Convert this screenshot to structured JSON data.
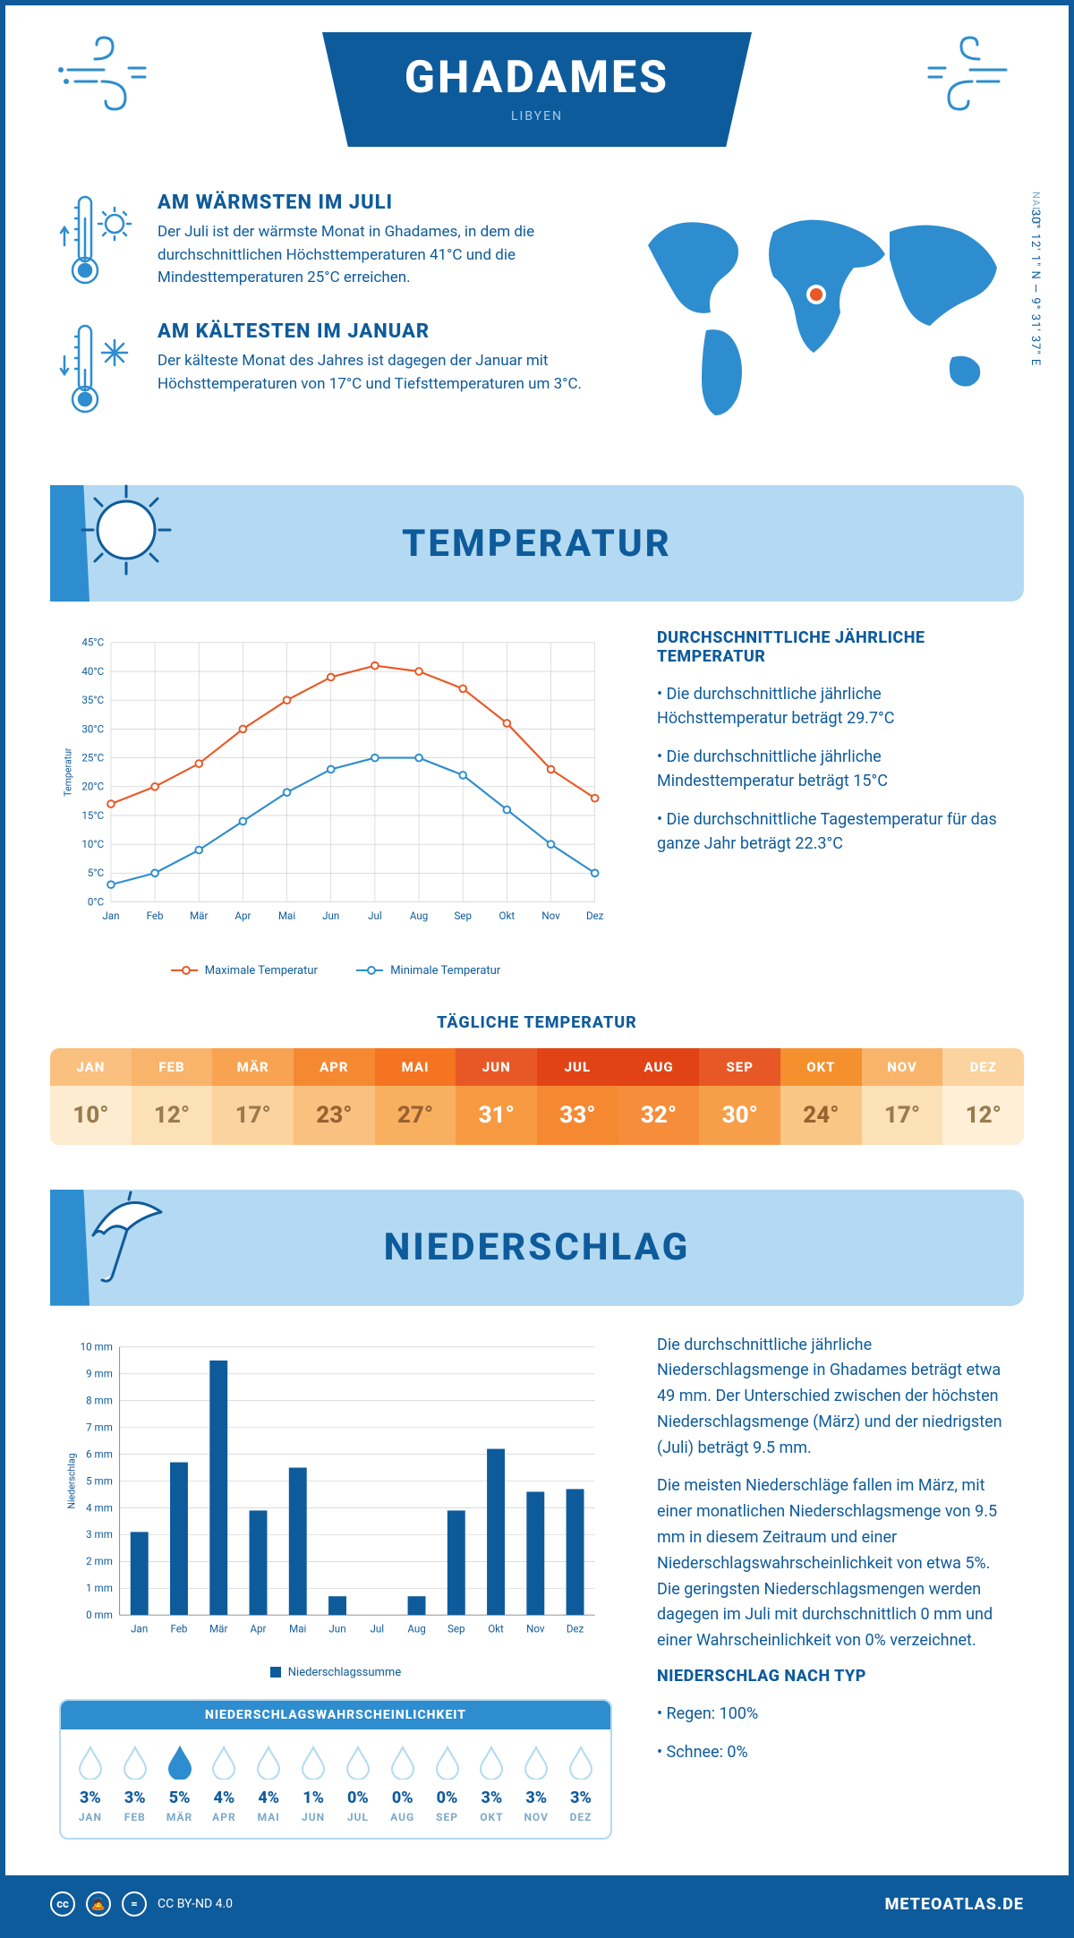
{
  "header": {
    "title": "GHADAMES",
    "country": "LIBYEN"
  },
  "coords": "30° 12' 1\" N — 9° 31' 37\" E",
  "region": "NALUT",
  "facts": {
    "hot": {
      "title": "AM WÄRMSTEN IM JULI",
      "body": "Der Juli ist der wärmste Monat in Ghadames, in dem die durchschnittlichen Höchsttemperaturen 41°C und die Mindesttemperaturen 25°C erreichen."
    },
    "cold": {
      "title": "AM KÄLTESTEN IM JANUAR",
      "body": "Der kälteste Monat des Jahres ist dagegen der Januar mit Höchsttemperaturen von 17°C und Tiefsttemperaturen um 3°C."
    }
  },
  "sections": {
    "temp": "TEMPERATUR",
    "precip": "NIEDERSCHLAG"
  },
  "months": [
    "Jan",
    "Feb",
    "Mär",
    "Apr",
    "Mai",
    "Jun",
    "Jul",
    "Aug",
    "Sep",
    "Okt",
    "Nov",
    "Dez"
  ],
  "months_upper": [
    "JAN",
    "FEB",
    "MÄR",
    "APR",
    "MAI",
    "JUN",
    "JUL",
    "AUG",
    "SEP",
    "OKT",
    "NOV",
    "DEZ"
  ],
  "temp_chart": {
    "ylabel": "Temperatur",
    "ylim": [
      0,
      45
    ],
    "ytick_step": 5,
    "max_series": {
      "label": "Maximale Temperatur",
      "color": "#e85826",
      "data": [
        17,
        20,
        24,
        30,
        35,
        39,
        41,
        40,
        37,
        31,
        23,
        18
      ]
    },
    "min_series": {
      "label": "Minimale Temperatur",
      "color": "#2e8dcf",
      "data": [
        3,
        5,
        9,
        14,
        19,
        23,
        25,
        25,
        22,
        16,
        10,
        5
      ]
    },
    "grid_color": "#c8c8c8"
  },
  "temp_side": {
    "title": "DURCHSCHNITTLICHE JÄHRLICHE TEMPERATUR",
    "b1": "Die durchschnittliche jährliche Höchsttemperatur beträgt 29.7°C",
    "b2": "Die durchschnittliche jährliche Mindesttemperatur beträgt 15°C",
    "b3": "Die durchschnittliche Tagestemperatur für das ganze Jahr beträgt 22.3°C"
  },
  "daily_temp": {
    "title": "TÄGLICHE TEMPERATUR",
    "values": [
      "10°",
      "12°",
      "17°",
      "23°",
      "27°",
      "31°",
      "33°",
      "32°",
      "30°",
      "24°",
      "17°",
      "12°"
    ],
    "header_colors": [
      "#f9c080",
      "#f9b46c",
      "#f7a352",
      "#f58932",
      "#f47421",
      "#e85826",
      "#e24316",
      "#e24316",
      "#e85826",
      "#f5902f",
      "#f9b46c",
      "#fbd39e"
    ],
    "body_colors": [
      "#fdeccf",
      "#fce0b6",
      "#fbd39e",
      "#f9c080",
      "#f8b060",
      "#f79a42",
      "#f58932",
      "#f58d3a",
      "#f79e48",
      "#fac685",
      "#fce0b6",
      "#feefd6"
    ],
    "text_colors": [
      "#9a7a4f",
      "#9a7a4f",
      "#9a7a4f",
      "#9a6230",
      "#9a6230",
      "#ffffff",
      "#ffffff",
      "#ffffff",
      "#ffffff",
      "#9a6230",
      "#9a7a4f",
      "#9a7a4f"
    ],
    "htext_colors": [
      "#ffffff",
      "#ffffff",
      "#ffffff",
      "#ffffff",
      "#ffffff",
      "#ffffff",
      "#ffffff",
      "#ffffff",
      "#ffffff",
      "#ffffff",
      "#ffffff",
      "#ffffff"
    ]
  },
  "precip_chart": {
    "ylabel": "Niederschlag",
    "ylim": [
      0,
      10
    ],
    "ytick_step": 1,
    "color": "#0e5b9b",
    "data": [
      3.1,
      5.7,
      9.5,
      3.9,
      5.5,
      0.7,
      0,
      0.7,
      3.9,
      6.2,
      4.6,
      4.7
    ],
    "legend": "Niederschlagssumme"
  },
  "precip_side": {
    "p1": "Die durchschnittliche jährliche Niederschlagsmenge in Ghadames beträgt etwa 49 mm. Der Unterschied zwischen der höchsten Niederschlagsmenge (März) und der niedrigsten (Juli) beträgt 9.5 mm.",
    "p2": "Die meisten Niederschläge fallen im März, mit einer monatlichen Niederschlagsmenge von 9.5 mm in diesem Zeitraum und einer Niederschlagswahrscheinlichkeit von etwa 5%. Die geringsten Niederschlagsmengen werden dagegen im Juli mit durchschnittlich 0 mm und einer Wahrscheinlichkeit von 0% verzeichnet.",
    "type_title": "NIEDERSCHLAG NACH TYP",
    "type_rain": "Regen: 100%",
    "type_snow": "Schnee: 0%"
  },
  "prob": {
    "title": "NIEDERSCHLAGSWAHRSCHEINLICHKEIT",
    "values": [
      "3%",
      "3%",
      "5%",
      "4%",
      "4%",
      "1%",
      "0%",
      "0%",
      "0%",
      "3%",
      "3%",
      "3%"
    ],
    "max_index": 2
  },
  "footer": {
    "license": "CC BY-ND 4.0",
    "site": "METEOATLAS.DE"
  },
  "colors": {
    "primary": "#0e5b9b",
    "mid": "#2e8dcf",
    "light": "#b3daf2",
    "orange": "#e85826"
  }
}
